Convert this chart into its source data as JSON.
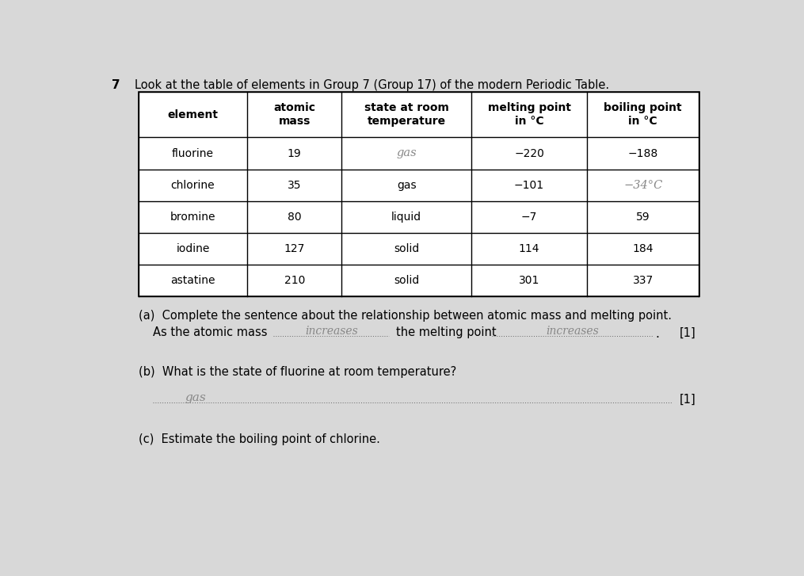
{
  "question_number": "7",
  "intro_text": "Look at the table of elements in Group 7 (Group 17) of the modern Periodic Table.",
  "table_headers": [
    "element",
    "atomic\nmass",
    "state at room\ntemperature",
    "melting point\nin °C",
    "boiling point\nin °C"
  ],
  "table_data": [
    [
      "fluorine",
      "19",
      "",
      "−220",
      "−188"
    ],
    [
      "chlorine",
      "35",
      "gas",
      "−101",
      ""
    ],
    [
      "bromine",
      "80",
      "liquid",
      "−7",
      "59"
    ],
    [
      "iodine",
      "127",
      "solid",
      "114",
      "184"
    ],
    [
      "astatine",
      "210",
      "solid",
      "301",
      "337"
    ]
  ],
  "handwritten_cells": {
    "fluorine_state": "gas",
    "chlorine_boiling": "−34°C",
    "answer_a1": "increases",
    "answer_a2": "increases",
    "answer_b": "gas"
  },
  "part_a_text": "(a)  Complete the sentence about the relationship between atomic mass and melting point.",
  "part_a_sentence_prefix": "As the atomic mass",
  "part_a_sentence_mid": "the melting point",
  "part_a_mark": "[1]",
  "part_b_text": "(b)  What is the state of fluorine at room temperature?",
  "part_b_mark": "[1]",
  "part_c_text": "(c)  Estimate the boiling point of chlorine.",
  "bg_color": "#d8d8d8",
  "table_bg": "#ffffff"
}
